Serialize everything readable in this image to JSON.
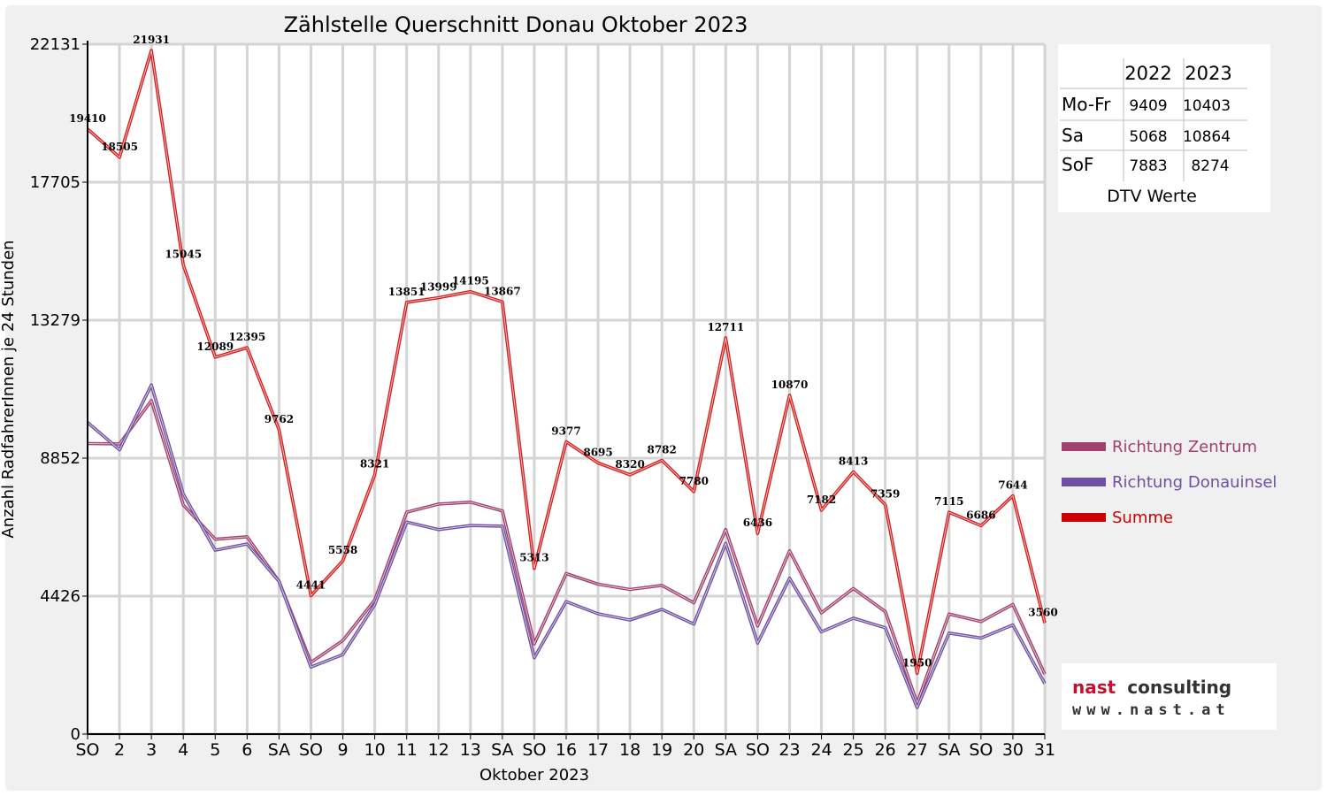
{
  "chart_data": {
    "type": "line",
    "title": "Zählstelle Querschnitt Donau Oktober 2023",
    "xlabel": "Oktober 2023",
    "ylabel": "Anzahl RadfahrerInnen je 24 Stunden",
    "ylim": [
      0,
      22131
    ],
    "yticks": [
      "0",
      "4426",
      "8852",
      "13279",
      "17705",
      "22131"
    ],
    "categories": [
      "SO",
      "2",
      "3",
      "4",
      "5",
      "6",
      "SA",
      "SO",
      "9",
      "10",
      "11",
      "12",
      "13",
      "SA",
      "SO",
      "16",
      "17",
      "18",
      "19",
      "20",
      "SA",
      "SO",
      "23",
      "24",
      "25",
      "26",
      "27",
      "SA",
      "SO",
      "30",
      "31"
    ],
    "red_categories": [
      0,
      7,
      14,
      21,
      25,
      28
    ],
    "grid": true,
    "legend_position": "right",
    "series": [
      {
        "name": "Richtung Zentrum",
        "color": "#a0406e",
        "values": [
          9320,
          9310,
          10700,
          7350,
          6250,
          6330,
          4900,
          2300,
          3000,
          4300,
          7120,
          7380,
          7440,
          7160,
          2890,
          5150,
          4810,
          4640,
          4770,
          4210,
          6560,
          3470,
          5880,
          3890,
          4670,
          3930,
          1000,
          3850,
          3610,
          4160,
          1920
        ]
      },
      {
        "name": "Richtung Donauinsel",
        "color": "#7050a0",
        "values": [
          10000,
          9120,
          11200,
          7700,
          5900,
          6100,
          4900,
          2150,
          2550,
          4150,
          6800,
          6560,
          6690,
          6670,
          2450,
          4250,
          3860,
          3660,
          4000,
          3530,
          6120,
          2920,
          5000,
          3280,
          3720,
          3410,
          850,
          3240,
          3080,
          3500,
          1620
        ]
      },
      {
        "name": "Summe",
        "color": "#d42020",
        "values": [
          19410,
          18505,
          21931,
          15045,
          12089,
          12395,
          9762,
          4441,
          5558,
          8321,
          13851,
          13999,
          14195,
          13867,
          5313,
          9377,
          8695,
          8320,
          8782,
          7780,
          12711,
          6436,
          10870,
          7182,
          8413,
          7359,
          1950,
          7115,
          6686,
          7644,
          3560
        ]
      }
    ],
    "data_labels": [
      "19410",
      "18505",
      "21931",
      "15045",
      "12089",
      "12395",
      "9762",
      "4441",
      "5558",
      "8321",
      "13851",
      "13999",
      "14195",
      "13867",
      "5313",
      "9377",
      "8695",
      "8320",
      "8782",
      "7780",
      "12711",
      "6436",
      "10870",
      "7182",
      "8413",
      "7359",
      "1950",
      "7115",
      "6686",
      "7644",
      "3560"
    ]
  },
  "dtv_table": {
    "caption": "DTV Werte",
    "headers": [
      "",
      "2022",
      "2023"
    ],
    "rows": [
      {
        "label": "Mo-Fr",
        "v2022": "9409",
        "v2023": "10403"
      },
      {
        "label": "Sa",
        "v2022": "5068",
        "v2023": "10864"
      },
      {
        "label": "SoF",
        "v2022": "7883",
        "v2023": "8274"
      }
    ]
  },
  "logo": {
    "line1_part1": "nast",
    "line1_part2": "consulting",
    "line2": "www.nast.at",
    "color_red": "#c8102e",
    "color_dark": "#333333"
  }
}
